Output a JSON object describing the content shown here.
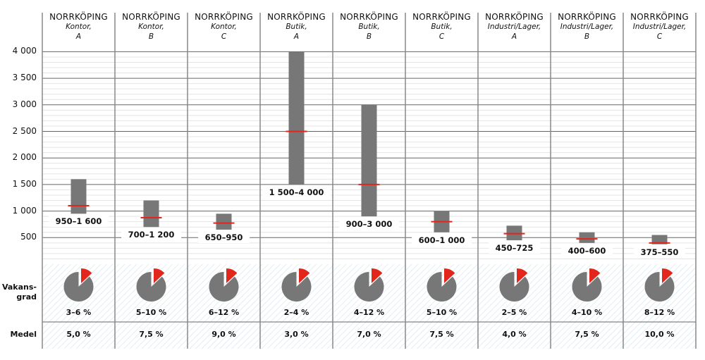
{
  "chart_data": {
    "type": "bar",
    "subtype": "range-with-median",
    "yticks": [
      "4 000",
      "3 500",
      "3 000",
      "2 500",
      "2 000",
      "1 500",
      "1 000",
      "500"
    ],
    "ytick_values": [
      4000,
      3500,
      3000,
      2500,
      2000,
      1500,
      1000,
      500
    ],
    "ylim": [
      0,
      4000
    ],
    "grid": true,
    "colors": {
      "bar": "#777777",
      "median": "#e3261b",
      "pie_main": "#777777",
      "pie_slice": "#e3261b",
      "hatch": "#cfe3ec",
      "grid_major": "#666666",
      "grid_minor": "#e4e4e4"
    },
    "categories": [
      {
        "city": "NORRKÖPING",
        "type": "Kontor,",
        "class": "A",
        "low": 950,
        "high": 1600,
        "median": 1100,
        "range_label": "950–1 600",
        "vacancy": "3–6 %",
        "mean": "5,0 %"
      },
      {
        "city": "NORRKÖPING",
        "type": "Kontor,",
        "class": "B",
        "low": 700,
        "high": 1200,
        "median": 875,
        "range_label": "700–1 200",
        "vacancy": "5–10 %",
        "mean": "7,5 %"
      },
      {
        "city": "NORRKÖPING",
        "type": "Kontor,",
        "class": "C",
        "low": 650,
        "high": 950,
        "median": 775,
        "range_label": "650–950",
        "vacancy": "6–12 %",
        "mean": "9,0 %"
      },
      {
        "city": "NORRKÖPING",
        "type": "Butik,",
        "class": "A",
        "low": 1500,
        "high": 4000,
        "median": 2500,
        "range_label": "1 500–4 000",
        "vacancy": "2–4 %",
        "mean": "3,0 %"
      },
      {
        "city": "NORRKÖPING",
        "type": "Butik,",
        "class": "B",
        "low": 900,
        "high": 3000,
        "median": 1500,
        "range_label": "900–3 000",
        "vacancy": "4–12 %",
        "mean": "7,0 %"
      },
      {
        "city": "NORRKÖPING",
        "type": "Butik,",
        "class": "C",
        "low": 600,
        "high": 1000,
        "median": 800,
        "range_label": "600–1 000",
        "vacancy": "5–10 %",
        "mean": "7,5 %"
      },
      {
        "city": "NORRKÖPING",
        "type": "Industri/Lager,",
        "class": "A",
        "low": 450,
        "high": 725,
        "median": 575,
        "range_label": "450–725",
        "vacancy": "2–5 %",
        "mean": "4,0 %"
      },
      {
        "city": "NORRKÖPING",
        "type": "Industri/Lager,",
        "class": "B",
        "low": 400,
        "high": 600,
        "median": 475,
        "range_label": "400–600",
        "vacancy": "4–10 %",
        "mean": "7,5 %"
      },
      {
        "city": "NORRKÖPING",
        "type": "Industri/Lager,",
        "class": "C",
        "low": 375,
        "high": 550,
        "median": 400,
        "range_label": "375–550",
        "vacancy": "8–12 %",
        "mean": "10,0 %"
      }
    ],
    "row_labels": {
      "vacancy": "Vakans-\ngrad",
      "mean": "Medel"
    }
  }
}
